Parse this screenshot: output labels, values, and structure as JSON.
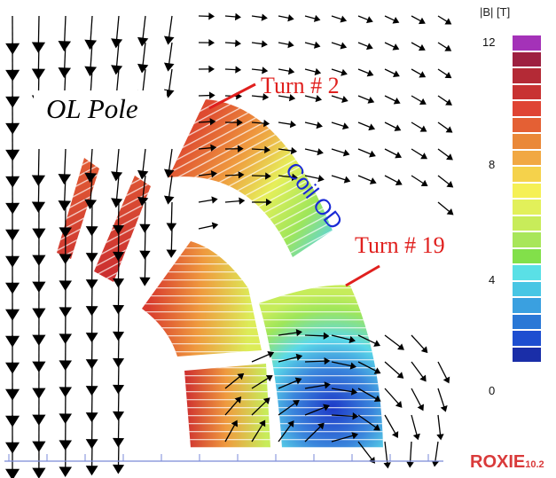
{
  "labels": {
    "pole": "OL Pole",
    "turn_2": "Turn # 2",
    "turn_19": "Turn # 19",
    "coil_od": "Coil OD"
  },
  "colorbar": {
    "title": "|B| [T]",
    "ticks": [
      "12",
      "8",
      "4",
      "0"
    ],
    "range": [
      0,
      12
    ],
    "colors": [
      "#a432b8",
      "#9e2040",
      "#b42a36",
      "#c83232",
      "#df4434",
      "#e46034",
      "#ea8838",
      "#f1a843",
      "#f5d24b",
      "#f5f055",
      "#e2f05a",
      "#c8ec5a",
      "#a8e65a",
      "#82e04a",
      "#5ae0e6",
      "#48c6e4",
      "#3aa0e0",
      "#2a78d6",
      "#1e4ed0",
      "#1a2ea8"
    ]
  },
  "colors": {
    "annotation_red": "#e0201e",
    "annotation_blue": "#1a2ad6",
    "logo": "#d93a3a"
  },
  "logo": {
    "name": "ROXIE",
    "version": "10.2"
  }
}
